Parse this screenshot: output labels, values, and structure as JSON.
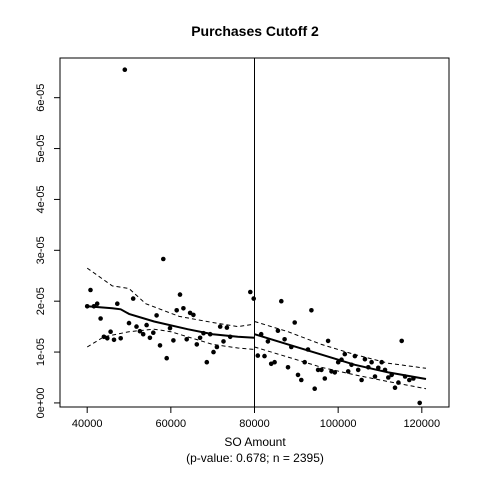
{
  "chart_data": {
    "type": "scatter",
    "title": "Purchases Cutoff 2",
    "xlabel": "SO Amount",
    "subtitle": "(p-value: 0.678; n = 2395)",
    "ylabel": "",
    "xlim": [
      33500,
      126500
    ],
    "ylim": [
      -8e-07,
      6.78e-05
    ],
    "x_ticks": [
      40000,
      60000,
      80000,
      100000,
      120000
    ],
    "x_tick_labels": [
      "40000",
      "60000",
      "80000",
      "100000",
      "120000"
    ],
    "y_ticks": [
      0,
      1e-05,
      2e-05,
      3e-05,
      4e-05,
      5e-05,
      6e-05
    ],
    "y_tick_labels": [
      "0e+00",
      "1e-05",
      "2e-05",
      "3e-05",
      "4e-05",
      "5e-05",
      "6e-05"
    ],
    "cutoff": 80000,
    "grid": false,
    "colors": {
      "points": "#000000",
      "lines": "#000000"
    },
    "points": [
      [
        40000,
        1.9e-05
      ],
      [
        40800,
        2.22e-05
      ],
      [
        41600,
        1.9e-05
      ],
      [
        42400,
        1.95e-05
      ],
      [
        43200,
        1.66e-05
      ],
      [
        44000,
        1.3e-05
      ],
      [
        44800,
        1.27e-05
      ],
      [
        45600,
        1.4e-05
      ],
      [
        46400,
        1.24e-05
      ],
      [
        47200,
        1.95e-05
      ],
      [
        48000,
        1.27e-05
      ],
      [
        49000,
        6.55e-05
      ],
      [
        50000,
        1.57e-05
      ],
      [
        51000,
        2.05e-05
      ],
      [
        51800,
        1.5e-05
      ],
      [
        52600,
        1.41e-05
      ],
      [
        53400,
        1.35e-05
      ],
      [
        54200,
        1.53e-05
      ],
      [
        55000,
        1.28e-05
      ],
      [
        55800,
        1.38e-05
      ],
      [
        56600,
        1.72e-05
      ],
      [
        57400,
        1.13e-05
      ],
      [
        58200,
        2.83e-05
      ],
      [
        59000,
        8.8e-06
      ],
      [
        59800,
        1.47e-05
      ],
      [
        60600,
        1.23e-05
      ],
      [
        61400,
        1.82e-05
      ],
      [
        62200,
        2.13e-05
      ],
      [
        63000,
        1.86e-05
      ],
      [
        63800,
        1.25e-05
      ],
      [
        64600,
        1.77e-05
      ],
      [
        65400,
        1.73e-05
      ],
      [
        66200,
        1.15e-05
      ],
      [
        67000,
        1.28e-05
      ],
      [
        67800,
        1.37e-05
      ],
      [
        68600,
        8e-06
      ],
      [
        69400,
        1.35e-05
      ],
      [
        70200,
        1e-05
      ],
      [
        71000,
        1.1e-05
      ],
      [
        71800,
        1.5e-05
      ],
      [
        72600,
        1.21e-05
      ],
      [
        73400,
        1.48e-05
      ],
      [
        74200,
        1.3e-05
      ],
      [
        79000,
        2.18e-05
      ],
      [
        79800,
        2.05e-05
      ],
      [
        80800,
        9.3e-06
      ],
      [
        81600,
        1.35e-05
      ],
      [
        82400,
        9.2e-06
      ],
      [
        83200,
        1.21e-05
      ],
      [
        84000,
        7.7e-06
      ],
      [
        84800,
        8e-06
      ],
      [
        85600,
        1.42e-05
      ],
      [
        86400,
        2e-05
      ],
      [
        87200,
        1.25e-05
      ],
      [
        88000,
        7e-06
      ],
      [
        88800,
        1.1e-05
      ],
      [
        89600,
        1.58e-05
      ],
      [
        90400,
        5.5e-06
      ],
      [
        91200,
        4.5e-06
      ],
      [
        92000,
        8e-06
      ],
      [
        92800,
        1.05e-05
      ],
      [
        93600,
        1.82e-05
      ],
      [
        94400,
        2.8e-06
      ],
      [
        95200,
        6.5e-06
      ],
      [
        96000,
        6.5e-06
      ],
      [
        96800,
        4.8e-06
      ],
      [
        97600,
        1.22e-05
      ],
      [
        98400,
        6.2e-06
      ],
      [
        99200,
        6e-06
      ],
      [
        100000,
        8e-06
      ],
      [
        100800,
        8.5e-06
      ],
      [
        101600,
        9.6e-06
      ],
      [
        102400,
        6.2e-06
      ],
      [
        103200,
        7.5e-06
      ],
      [
        104000,
        9.2e-06
      ],
      [
        104800,
        6.5e-06
      ],
      [
        105600,
        4.5e-06
      ],
      [
        106400,
        8.6e-06
      ],
      [
        107200,
        7e-06
      ],
      [
        108000,
        8e-06
      ],
      [
        108800,
        5.2e-06
      ],
      [
        109600,
        6.9e-06
      ],
      [
        110400,
        8e-06
      ],
      [
        111200,
        6.5e-06
      ],
      [
        112000,
        5e-06
      ],
      [
        112800,
        5.5e-06
      ],
      [
        113600,
        3e-06
      ],
      [
        114400,
        4e-06
      ],
      [
        115200,
        1.22e-05
      ],
      [
        119500,
        0.0
      ],
      [
        116000,
        5.2e-06
      ],
      [
        117000,
        4.5e-06
      ],
      [
        118000,
        4.8e-06
      ]
    ],
    "fit_left": [
      [
        40000,
        1.9e-05
      ],
      [
        46000,
        1.86e-05
      ],
      [
        48000,
        1.84e-05
      ],
      [
        50000,
        1.75e-05
      ],
      [
        56000,
        1.6e-05
      ],
      [
        64000,
        1.45e-05
      ],
      [
        70000,
        1.35e-05
      ],
      [
        76000,
        1.3e-05
      ],
      [
        80000,
        1.28e-05
      ]
    ],
    "band_left_upper": [
      [
        40000,
        2.65e-05
      ],
      [
        46000,
        2.3e-05
      ],
      [
        50000,
        2.25e-05
      ],
      [
        54000,
        1.95e-05
      ],
      [
        62000,
        1.7e-05
      ],
      [
        70000,
        1.58e-05
      ],
      [
        76000,
        1.5e-05
      ],
      [
        80000,
        1.55e-05
      ]
    ],
    "band_left_lower": [
      [
        40000,
        1.1e-05
      ],
      [
        44000,
        1.3e-05
      ],
      [
        50000,
        1.4e-05
      ],
      [
        56000,
        1.45e-05
      ],
      [
        60000,
        1.4e-05
      ],
      [
        64000,
        1.3e-05
      ],
      [
        70000,
        1.15e-05
      ],
      [
        76000,
        1.08e-05
      ],
      [
        80000,
        1.05e-05
      ]
    ],
    "fit_right": [
      [
        80000,
        1.35e-05
      ],
      [
        88000,
        1.15e-05
      ],
      [
        96000,
        9.5e-06
      ],
      [
        104000,
        7.5e-06
      ],
      [
        112000,
        6e-06
      ],
      [
        121000,
        4.7e-06
      ]
    ],
    "band_right_upper": [
      [
        80000,
        1.6e-05
      ],
      [
        88000,
        1.4e-05
      ],
      [
        96000,
        1.15e-05
      ],
      [
        104000,
        9.5e-06
      ],
      [
        112000,
        7.8e-06
      ],
      [
        121000,
        6.8e-06
      ]
    ],
    "band_right_lower": [
      [
        80000,
        1.1e-05
      ],
      [
        88000,
        9e-06
      ],
      [
        96000,
        7e-06
      ],
      [
        104000,
        5.5e-06
      ],
      [
        112000,
        4.2e-06
      ],
      [
        121000,
        2.8e-06
      ]
    ]
  }
}
